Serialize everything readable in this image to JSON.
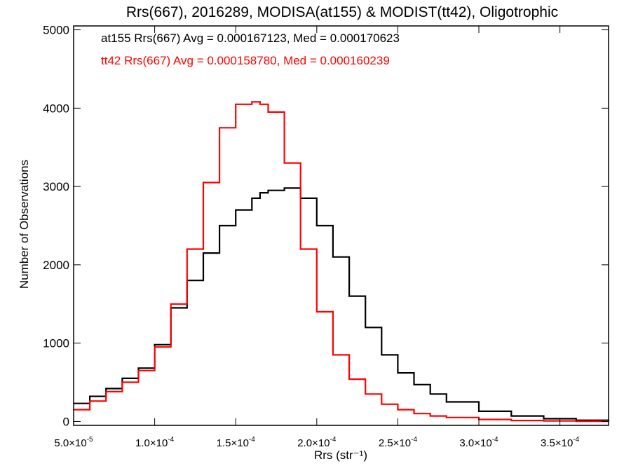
{
  "chart_data": {
    "type": "line",
    "title": "Rrs(667), 2016289, MODISA(at155) & MODIST(tt42), Oligotrophic",
    "xlabel": "Rrs (str⁻¹)",
    "ylabel": "Number of Observations",
    "xlim": [
      5e-05,
      0.00038
    ],
    "ylim": [
      -50,
      5050
    ],
    "x_ticks": [
      {
        "value": 5e-05,
        "mant": "5.0",
        "exp": "-5"
      },
      {
        "value": 0.0001,
        "mant": "1.0",
        "exp": "-4"
      },
      {
        "value": 0.00015,
        "mant": "1.5",
        "exp": "-4"
      },
      {
        "value": 0.0002,
        "mant": "2.0",
        "exp": "-4"
      },
      {
        "value": 0.00025,
        "mant": "2.5",
        "exp": "-4"
      },
      {
        "value": 0.0003,
        "mant": "3.0",
        "exp": "-4"
      },
      {
        "value": 0.00035,
        "mant": "3.5",
        "exp": "-4"
      }
    ],
    "y_ticks": [
      0,
      1000,
      2000,
      3000,
      4000,
      5000
    ],
    "grid": false,
    "legend_position": "top-left",
    "annotations": [
      {
        "text": "at155 Rrs(667) Avg = 0.000167123, Med = 0.000170623",
        "color": "#000000"
      },
      {
        "text": "tt42 Rrs(667) Avg = 0.000158780, Med = 0.000160239",
        "color": "#ff0000"
      }
    ],
    "x": [
      5e-05,
      6e-05,
      7e-05,
      8e-05,
      9e-05,
      0.0001,
      0.00011,
      0.00012,
      0.00013,
      0.00014,
      0.00015,
      0.00016,
      0.000165,
      0.00017,
      0.00018,
      0.00019,
      0.0002,
      0.00021,
      0.00022,
      0.00023,
      0.00024,
      0.00025,
      0.00026,
      0.00027,
      0.00028,
      0.0003,
      0.00032,
      0.00034,
      0.00036,
      0.00038
    ],
    "series": [
      {
        "color": "#000000",
        "values": [
          230,
          320,
          420,
          550,
          680,
          980,
          1450,
          1800,
          2150,
          2500,
          2700,
          2850,
          2920,
          2950,
          2980,
          2850,
          2500,
          2100,
          1600,
          1200,
          850,
          620,
          470,
          350,
          250,
          130,
          70,
          35,
          15,
          10
        ]
      },
      {
        "color": "#ff0000",
        "values": [
          150,
          260,
          380,
          500,
          650,
          950,
          1500,
          2200,
          3050,
          3750,
          4050,
          4080,
          4050,
          3950,
          3300,
          2200,
          1400,
          850,
          540,
          350,
          220,
          150,
          100,
          70,
          50,
          25,
          12,
          6,
          3,
          2
        ]
      }
    ]
  }
}
